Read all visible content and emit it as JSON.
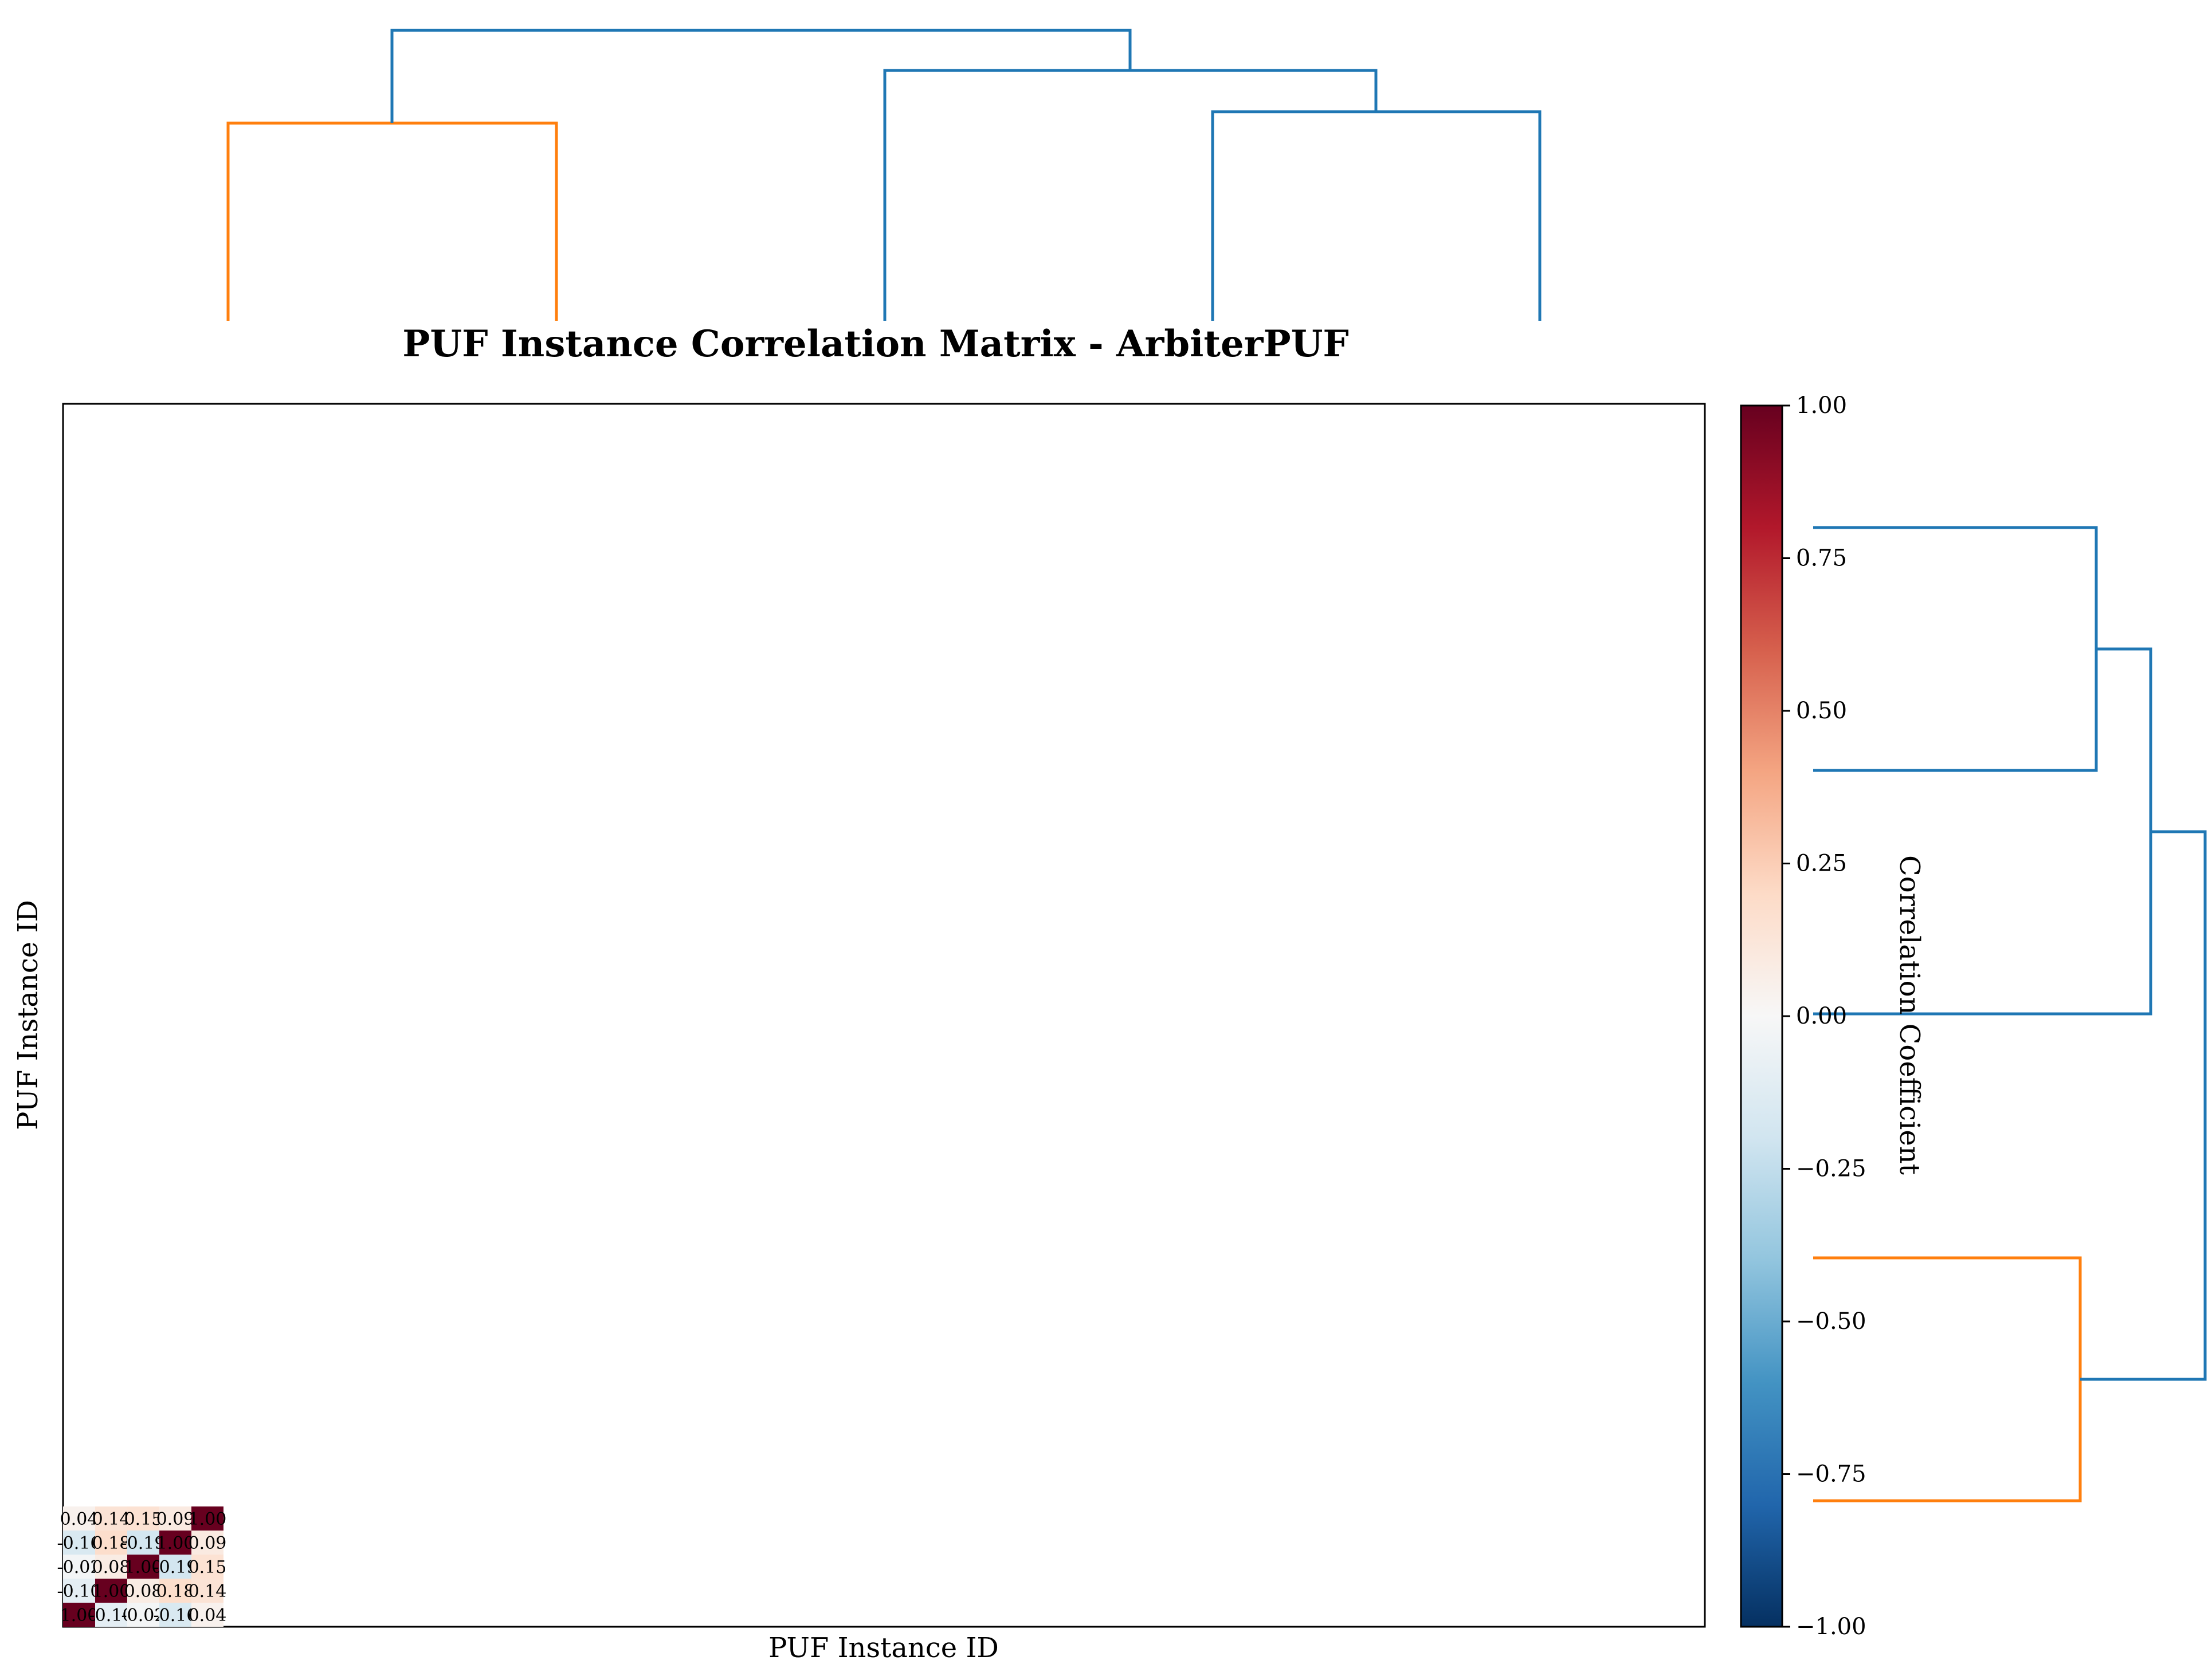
{
  "chart_data": {
    "type": "heatmap",
    "title": "PUF Instance Correlation Matrix - ArbiterPUF",
    "xlabel": "PUF Instance ID",
    "ylabel": "PUF Instance ID",
    "matrix": [
      [
        1.0,
        -0.1,
        -0.02,
        -0.16,
        0.04
      ],
      [
        -0.1,
        1.0,
        0.08,
        0.18,
        0.14
      ],
      [
        -0.02,
        0.08,
        1.0,
        -0.19,
        0.15
      ],
      [
        -0.16,
        0.18,
        -0.19,
        1.0,
        0.09
      ],
      [
        0.04,
        0.14,
        0.15,
        0.09,
        1.0
      ]
    ],
    "value_format": "0.00",
    "colormap": [
      "#053061",
      "#2166ac",
      "#4393c3",
      "#92c5de",
      "#d1e5f0",
      "#f7f7f7",
      "#fddbc7",
      "#f4a582",
      "#d6604d",
      "#b2182b",
      "#67001f"
    ],
    "colorbar": {
      "label": "Correlation Coefficient",
      "range": [
        -1.0,
        1.0
      ],
      "ticks": [
        "1.00",
        "0.75",
        "0.50",
        "0.25",
        "0.00",
        "−0.25",
        "−0.50",
        "−0.75",
        "−1.00"
      ]
    },
    "dendrogram_colors": {
      "cluster": "#ff7f0e",
      "above_threshold": "#1f77b4"
    }
  }
}
